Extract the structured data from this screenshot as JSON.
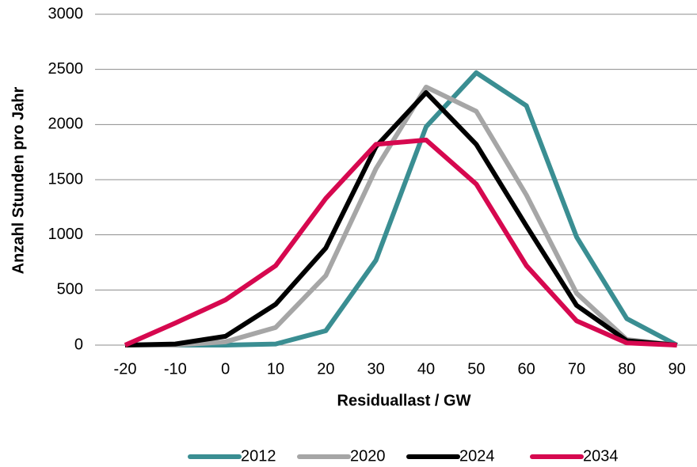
{
  "chart_data": {
    "type": "line",
    "x_label": "Residuallast / GW",
    "y_label": "Anzahl Stunden pro Jahr",
    "x": [
      -20,
      -10,
      0,
      10,
      20,
      30,
      40,
      50,
      60,
      70,
      80,
      90
    ],
    "xlim": [
      -26,
      94
    ],
    "xticks": [
      -20,
      -10,
      0,
      10,
      20,
      30,
      40,
      50,
      60,
      70,
      80,
      90
    ],
    "ylim": [
      0,
      3000
    ],
    "yticks": [
      0,
      500,
      1000,
      1500,
      2000,
      2500,
      3000
    ],
    "grid": true,
    "legend": "bottom",
    "series": [
      {
        "name": "2012",
        "color": "#3a8e92",
        "values": [
          0,
          0,
          0,
          10,
          130,
          770,
          1980,
          2470,
          2170,
          980,
          240,
          0
        ]
      },
      {
        "name": "2020",
        "color": "#a6a6a6",
        "values": [
          0,
          0,
          30,
          160,
          630,
          1600,
          2340,
          2120,
          1360,
          470,
          50,
          0
        ]
      },
      {
        "name": "2024",
        "color": "#000000",
        "values": [
          0,
          10,
          80,
          370,
          880,
          1800,
          2290,
          1820,
          1080,
          360,
          40,
          0
        ]
      },
      {
        "name": "2034",
        "color": "#d6084f",
        "values": [
          0,
          200,
          410,
          720,
          1330,
          1820,
          1860,
          1460,
          720,
          220,
          20,
          0
        ]
      }
    ]
  }
}
